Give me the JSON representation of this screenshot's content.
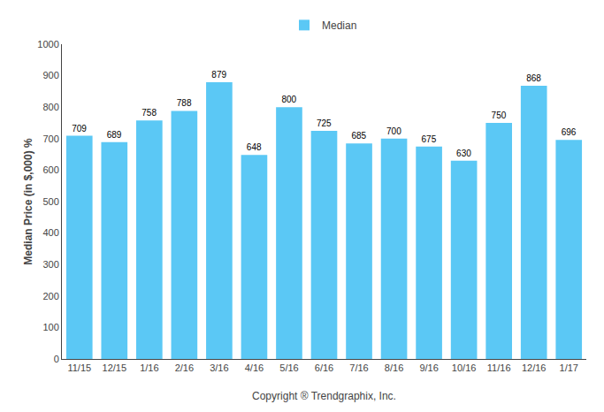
{
  "chart_data": {
    "type": "bar",
    "categories": [
      "11/15",
      "12/15",
      "1/16",
      "2/16",
      "3/16",
      "4/16",
      "5/16",
      "6/16",
      "7/16",
      "8/16",
      "9/16",
      "10/16",
      "11/16",
      "12/16",
      "1/17"
    ],
    "series": [
      {
        "name": "Median",
        "color": "#5BC8F5",
        "values": [
          709,
          689,
          758,
          788,
          879,
          648,
          800,
          725,
          685,
          700,
          675,
          630,
          750,
          868,
          696
        ]
      }
    ],
    "ylabel": "Median Price (in $,000) %",
    "xlabel": "Copyright ® Trendgraphix, Inc.",
    "ylim": [
      0,
      1000
    ],
    "yticks": [
      0,
      100,
      200,
      300,
      400,
      500,
      600,
      700,
      800,
      900,
      1000
    ],
    "grid": false,
    "legend": "top",
    "data_labels": true
  }
}
